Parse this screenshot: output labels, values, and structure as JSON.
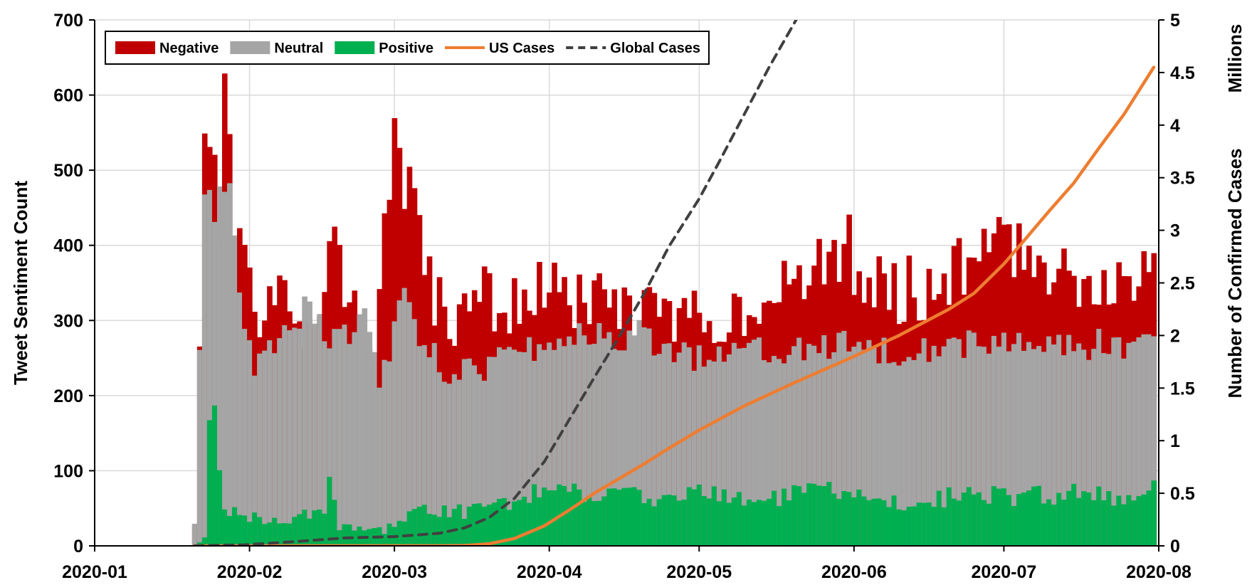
{
  "chart_data": {
    "type": "bar",
    "title": "",
    "stacked": true,
    "grid": true,
    "legend_position": "top-left",
    "x_axis": {
      "type": "date",
      "range": [
        "2020-01-01",
        "2020-08-01"
      ],
      "ticks": [
        "2020-01",
        "2020-02",
        "2020-03",
        "2020-04",
        "2020-05",
        "2020-06",
        "2020-07",
        "2020-08"
      ],
      "tick_dates": [
        "2020-01-01",
        "2020-02-01",
        "2020-03-01",
        "2020-04-01",
        "2020-05-01",
        "2020-06-01",
        "2020-07-01",
        "2020-08-01"
      ]
    },
    "y_axis_left": {
      "label": "Tweet Sentiment Count",
      "range": [
        0,
        700
      ],
      "ticks": [
        "0",
        "100",
        "200",
        "300",
        "400",
        "500",
        "600",
        "700"
      ]
    },
    "y_axis_right": {
      "label": "Number of Confirmed Cases",
      "units_label": "Millions",
      "range": [
        0,
        5
      ],
      "ticks": [
        "0",
        "0.5",
        "1",
        "1.5",
        "2",
        "2.5",
        "3",
        "3.5",
        "4",
        "4.5",
        "5"
      ]
    },
    "legend": [
      {
        "name": "Negative",
        "kind": "bar",
        "color": "#C00000"
      },
      {
        "name": "Neutral",
        "kind": "bar",
        "color": "#A5A5A5"
      },
      {
        "name": "Positive",
        "kind": "bar",
        "color": "#00B050"
      },
      {
        "name": "US Cases",
        "kind": "line",
        "color": "#ED7D31"
      },
      {
        "name": "Global Cases",
        "kind": "dashed-line",
        "color": "#404040"
      }
    ],
    "bar_series": [
      {
        "name": "Negative",
        "color": "#C00000",
        "keyframes": [
          [
            "2020-01-21",
            30
          ],
          [
            "2020-01-23",
            500
          ],
          [
            "2020-01-26",
            450
          ],
          [
            "2020-01-27",
            605
          ],
          [
            "2020-01-29",
            360
          ],
          [
            "2020-01-31",
            390
          ],
          [
            "2020-02-02",
            290
          ],
          [
            "2020-02-08",
            330
          ],
          [
            "2020-02-12",
            290
          ],
          [
            "2020-02-18",
            400
          ],
          [
            "2020-02-22",
            310
          ],
          [
            "2020-02-26",
            240
          ],
          [
            "2020-02-28",
            430
          ],
          [
            "2020-03-01",
            550
          ],
          [
            "2020-03-04",
            450
          ],
          [
            "2020-03-08",
            340
          ],
          [
            "2020-03-12",
            300
          ],
          [
            "2020-03-18",
            330
          ],
          [
            "2020-03-24",
            320
          ],
          [
            "2020-03-31",
            340
          ],
          [
            "2020-04-10",
            320
          ],
          [
            "2020-04-20",
            310
          ],
          [
            "2020-05-01",
            300
          ],
          [
            "2020-05-10",
            320
          ],
          [
            "2020-05-20",
            340
          ],
          [
            "2020-05-26",
            370
          ],
          [
            "2020-05-31",
            400
          ],
          [
            "2020-06-03",
            350
          ],
          [
            "2020-06-12",
            340
          ],
          [
            "2020-06-20",
            360
          ],
          [
            "2020-06-25",
            380
          ],
          [
            "2020-07-01",
            400
          ],
          [
            "2020-07-10",
            380
          ],
          [
            "2020-07-16",
            360
          ],
          [
            "2020-07-24",
            350
          ],
          [
            "2020-07-31",
            385
          ]
        ]
      },
      {
        "name": "Neutral",
        "color": "#A5A5A5",
        "keyframes": [
          [
            "2020-01-21",
            30
          ],
          [
            "2020-01-23",
            490
          ],
          [
            "2020-01-26",
            450
          ],
          [
            "2020-01-28",
            505
          ],
          [
            "2020-01-30",
            320
          ],
          [
            "2020-02-02",
            225
          ],
          [
            "2020-02-08",
            300
          ],
          [
            "2020-02-13",
            320
          ],
          [
            "2020-02-18",
            270
          ],
          [
            "2020-02-24",
            300
          ],
          [
            "2020-02-27",
            220
          ],
          [
            "2020-03-03",
            330
          ],
          [
            "2020-03-06",
            270
          ],
          [
            "2020-03-12",
            230
          ],
          [
            "2020-03-20",
            240
          ],
          [
            "2020-03-31",
            270
          ],
          [
            "2020-04-10",
            280
          ],
          [
            "2020-04-20",
            280
          ],
          [
            "2020-05-01",
            250
          ],
          [
            "2020-05-10",
            270
          ],
          [
            "2020-05-20",
            260
          ],
          [
            "2020-05-31",
            270
          ],
          [
            "2020-06-10",
            260
          ],
          [
            "2020-06-20",
            270
          ],
          [
            "2020-07-01",
            270
          ],
          [
            "2020-07-10",
            260
          ],
          [
            "2020-07-20",
            270
          ],
          [
            "2020-07-31",
            270
          ]
        ]
      },
      {
        "name": "Positive",
        "color": "#00B050",
        "keyframes": [
          [
            "2020-01-21",
            0
          ],
          [
            "2020-01-23",
            10
          ],
          [
            "2020-01-24",
            205
          ],
          [
            "2020-01-25",
            175
          ],
          [
            "2020-01-27",
            50
          ],
          [
            "2020-02-05",
            30
          ],
          [
            "2020-02-10",
            35
          ],
          [
            "2020-02-16",
            50
          ],
          [
            "2020-02-17",
            105
          ],
          [
            "2020-02-19",
            25
          ],
          [
            "2020-02-28",
            20
          ],
          [
            "2020-03-06",
            50
          ],
          [
            "2020-03-15",
            45
          ],
          [
            "2020-03-25",
            60
          ],
          [
            "2020-04-01",
            75
          ],
          [
            "2020-04-10",
            70
          ],
          [
            "2020-04-20",
            65
          ],
          [
            "2020-05-01",
            70
          ],
          [
            "2020-05-15",
            60
          ],
          [
            "2020-05-25",
            75
          ],
          [
            "2020-06-05",
            60
          ],
          [
            "2020-06-15",
            60
          ],
          [
            "2020-06-25",
            70
          ],
          [
            "2020-07-05",
            65
          ],
          [
            "2020-07-15",
            70
          ],
          [
            "2020-07-25",
            60
          ],
          [
            "2020-07-31",
            75
          ]
        ]
      }
    ],
    "line_series": [
      {
        "name": "US Cases",
        "axis": "right",
        "color": "#ED7D31",
        "style": "solid",
        "points": [
          [
            "2020-01-21",
            0
          ],
          [
            "2020-03-10",
            0.001
          ],
          [
            "2020-03-15",
            0.003
          ],
          [
            "2020-03-20",
            0.02
          ],
          [
            "2020-03-25",
            0.07
          ],
          [
            "2020-03-31",
            0.19
          ],
          [
            "2020-04-05",
            0.34
          ],
          [
            "2020-04-10",
            0.5
          ],
          [
            "2020-04-15",
            0.64
          ],
          [
            "2020-04-20",
            0.78
          ],
          [
            "2020-04-25",
            0.93
          ],
          [
            "2020-05-01",
            1.1
          ],
          [
            "2020-05-10",
            1.33
          ],
          [
            "2020-05-20",
            1.55
          ],
          [
            "2020-05-31",
            1.78
          ],
          [
            "2020-06-10",
            2.0
          ],
          [
            "2020-06-20",
            2.25
          ],
          [
            "2020-06-25",
            2.4
          ],
          [
            "2020-07-01",
            2.68
          ],
          [
            "2020-07-05",
            2.9
          ],
          [
            "2020-07-10",
            3.18
          ],
          [
            "2020-07-15",
            3.45
          ],
          [
            "2020-07-20",
            3.78
          ],
          [
            "2020-07-25",
            4.1
          ],
          [
            "2020-07-31",
            4.55
          ]
        ]
      },
      {
        "name": "Global Cases",
        "axis": "right",
        "color": "#404040",
        "style": "dashed",
        "points": [
          [
            "2020-01-21",
            0
          ],
          [
            "2020-01-31",
            0.01
          ],
          [
            "2020-02-10",
            0.04
          ],
          [
            "2020-02-20",
            0.075
          ],
          [
            "2020-03-01",
            0.088
          ],
          [
            "2020-03-10",
            0.12
          ],
          [
            "2020-03-15",
            0.17
          ],
          [
            "2020-03-20",
            0.27
          ],
          [
            "2020-03-25",
            0.45
          ],
          [
            "2020-03-31",
            0.8
          ],
          [
            "2020-04-05",
            1.2
          ],
          [
            "2020-04-10",
            1.6
          ],
          [
            "2020-04-15",
            1.99
          ],
          [
            "2020-04-20",
            2.4
          ],
          [
            "2020-04-25",
            2.85
          ],
          [
            "2020-05-01",
            3.3
          ],
          [
            "2020-05-05",
            3.65
          ],
          [
            "2020-05-10",
            4.1
          ],
          [
            "2020-05-15",
            4.55
          ],
          [
            "2020-05-21",
            5.05
          ]
        ]
      }
    ]
  }
}
